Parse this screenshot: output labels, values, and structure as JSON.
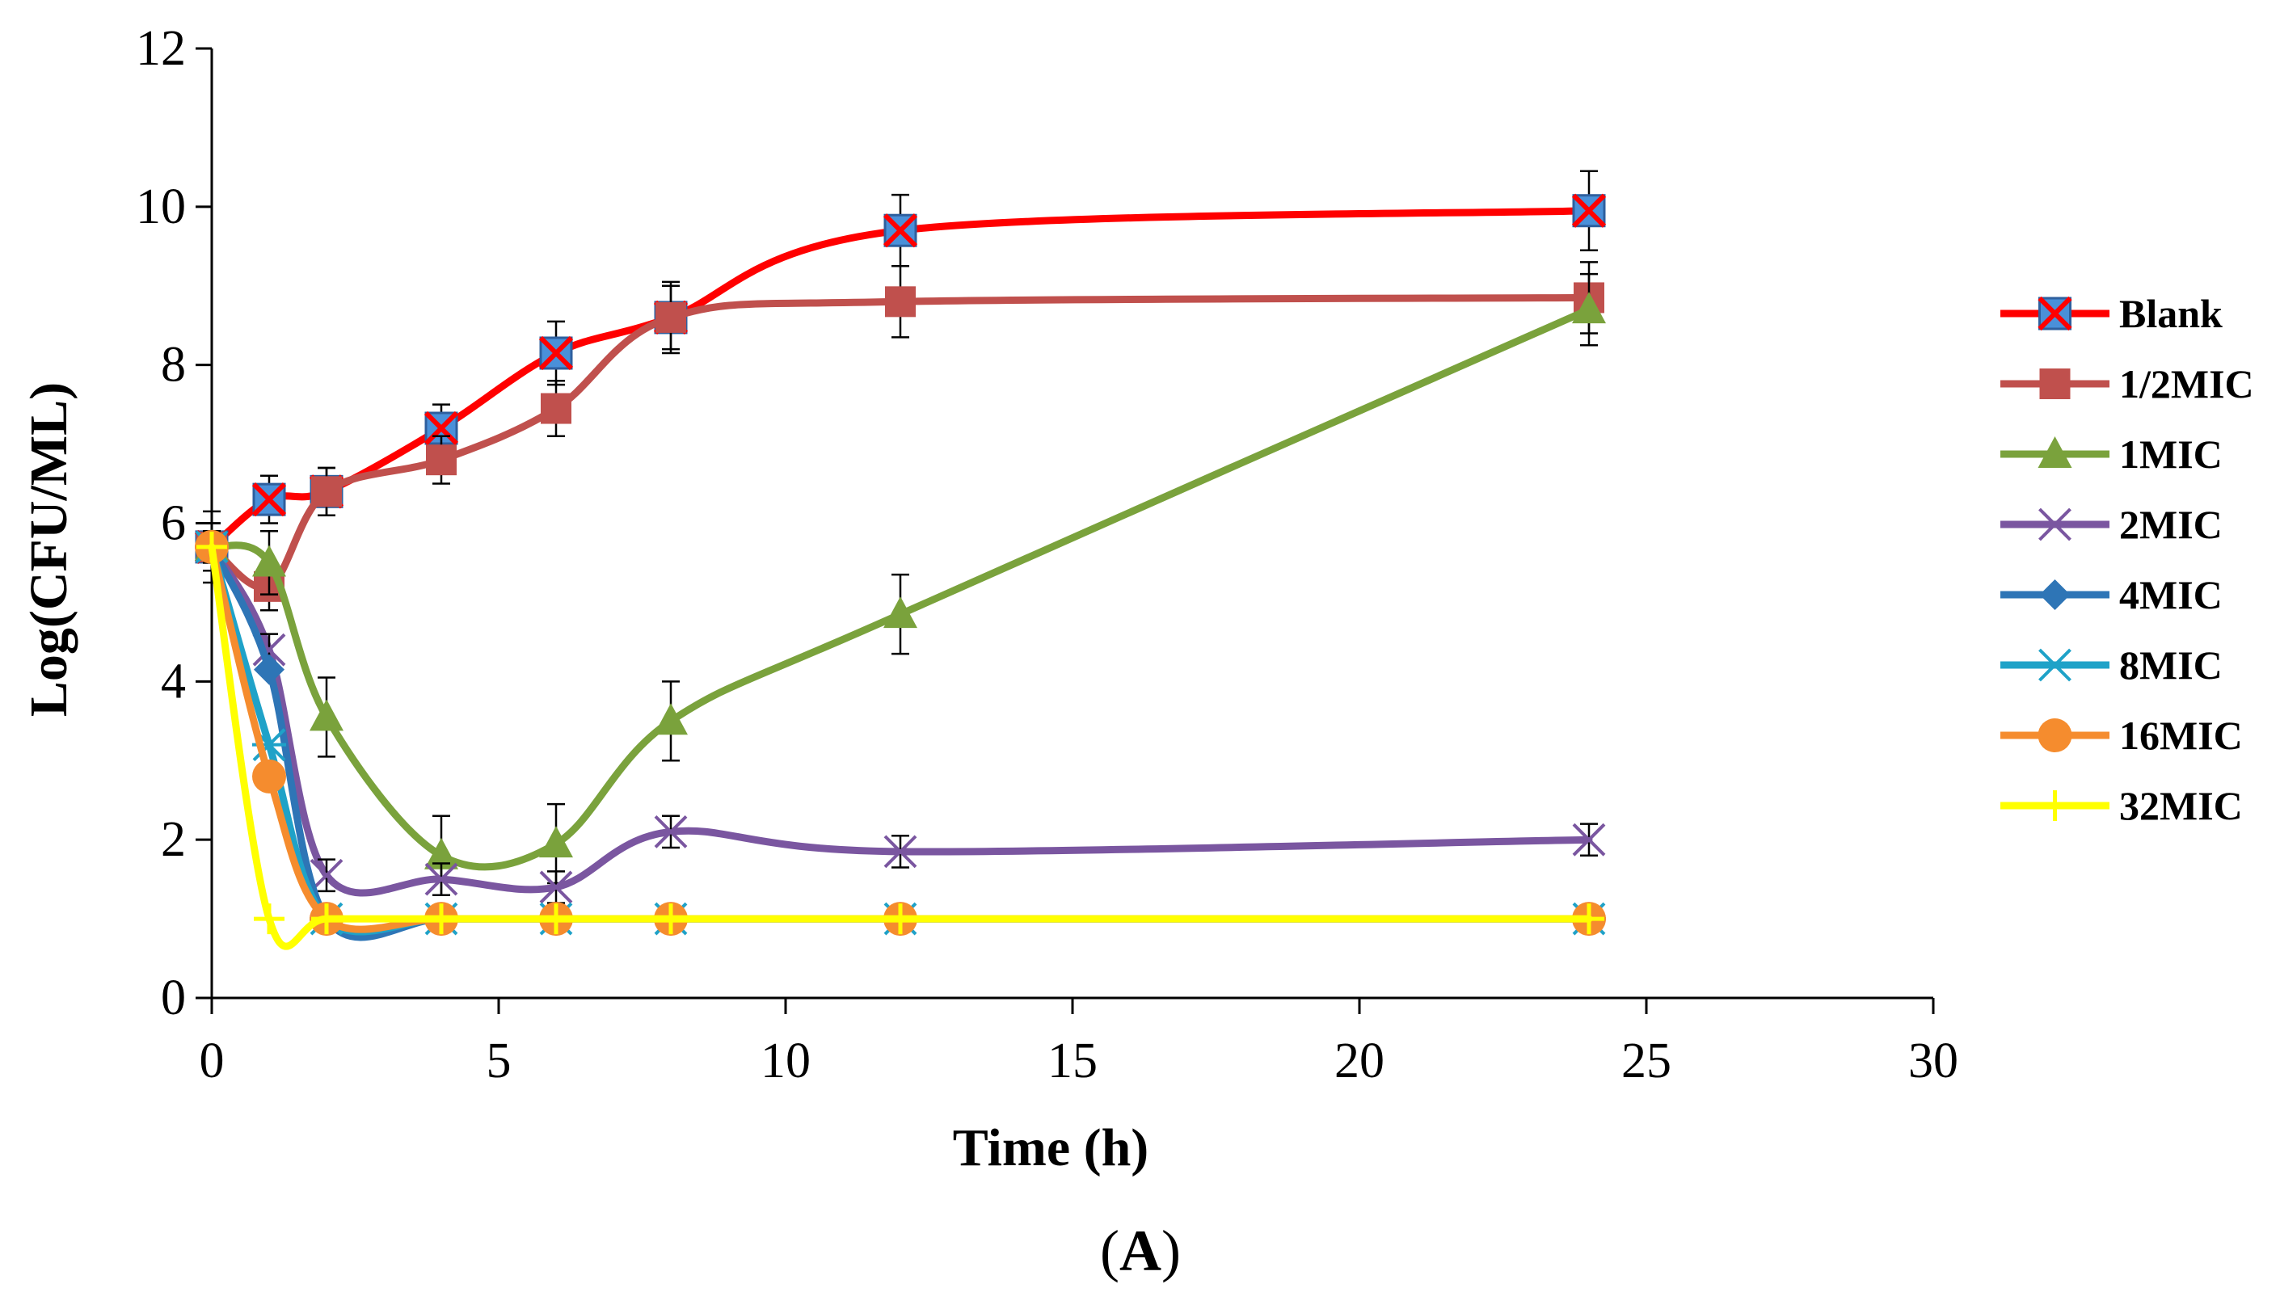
{
  "chart_data": {
    "type": "line",
    "title": "",
    "xlabel": "Time (h)",
    "ylabel": "Log(CFU/ML)",
    "xlim": [
      0,
      30
    ],
    "ylim": [
      0,
      12
    ],
    "x_ticks": [
      0,
      5,
      10,
      15,
      20,
      25,
      30
    ],
    "y_ticks": [
      0,
      2,
      4,
      6,
      8,
      10,
      12
    ],
    "grid": false,
    "smooth": true,
    "legend_position": "right",
    "caption": {
      "open": "(",
      "letter": "A",
      "close": ")"
    },
    "x": [
      0,
      1,
      2,
      4,
      6,
      8,
      12,
      24
    ],
    "series": [
      {
        "name": "Blank",
        "color": "#ff0000",
        "marker": "x-square",
        "values": [
          5.7,
          6.3,
          6.4,
          7.2,
          8.15,
          8.6,
          9.7,
          9.95
        ],
        "errors": [
          0.45,
          0.3,
          0.3,
          0.3,
          0.4,
          0.45,
          0.45,
          0.5
        ]
      },
      {
        "name": "1/2MIC",
        "color": "#c0504d",
        "marker": "square",
        "values": [
          5.7,
          5.2,
          6.4,
          6.8,
          7.45,
          8.6,
          8.8,
          8.85
        ],
        "errors": [
          0.3,
          0.3,
          0.3,
          0.3,
          0.35,
          0.4,
          0.45,
          0.45
        ]
      },
      {
        "name": "1MIC",
        "color": "#7aa23c",
        "marker": "triangle",
        "values": [
          5.7,
          5.5,
          3.55,
          1.8,
          1.95,
          3.5,
          4.85,
          8.7
        ],
        "errors": [
          0.3,
          0.4,
          0.5,
          0.5,
          0.5,
          0.5,
          0.5,
          0.45
        ]
      },
      {
        "name": "2MIC",
        "color": "#7a56a0",
        "marker": "x",
        "values": [
          5.7,
          4.4,
          1.55,
          1.5,
          1.4,
          2.1,
          1.85,
          2.0
        ],
        "errors": [
          0.2,
          0.2,
          0.2,
          0.2,
          0.2,
          0.2,
          0.2,
          0.2
        ]
      },
      {
        "name": "4MIC",
        "color": "#2e75b6",
        "marker": "diamond",
        "values": [
          5.7,
          4.15,
          1.0,
          1.0,
          1.0,
          1.0,
          1.0,
          1.0
        ],
        "errors": [
          0.1,
          0.1,
          0.08,
          0.08,
          0.08,
          0.08,
          0.08,
          0.08
        ]
      },
      {
        "name": "8MIC",
        "color": "#1fa2c8",
        "marker": "star",
        "values": [
          5.7,
          3.2,
          1.0,
          1.0,
          1.0,
          1.0,
          1.0,
          1.0
        ],
        "errors": [
          0.1,
          0.1,
          0.08,
          0.08,
          0.08,
          0.08,
          0.08,
          0.08
        ]
      },
      {
        "name": "16MIC",
        "color": "#f58c2e",
        "marker": "circle",
        "values": [
          5.7,
          2.8,
          1.0,
          1.0,
          1.0,
          1.0,
          1.0,
          1.0
        ],
        "errors": [
          0.1,
          0.1,
          0.08,
          0.08,
          0.08,
          0.08,
          0.08,
          0.08
        ]
      },
      {
        "name": "32MIC",
        "color": "#ffff00",
        "marker": "plus",
        "values": [
          5.7,
          1.0,
          1.0,
          1.0,
          1.0,
          1.0,
          1.0,
          1.0
        ],
        "errors": [
          0.1,
          0.08,
          0.08,
          0.08,
          0.08,
          0.08,
          0.08,
          0.08
        ]
      }
    ]
  }
}
